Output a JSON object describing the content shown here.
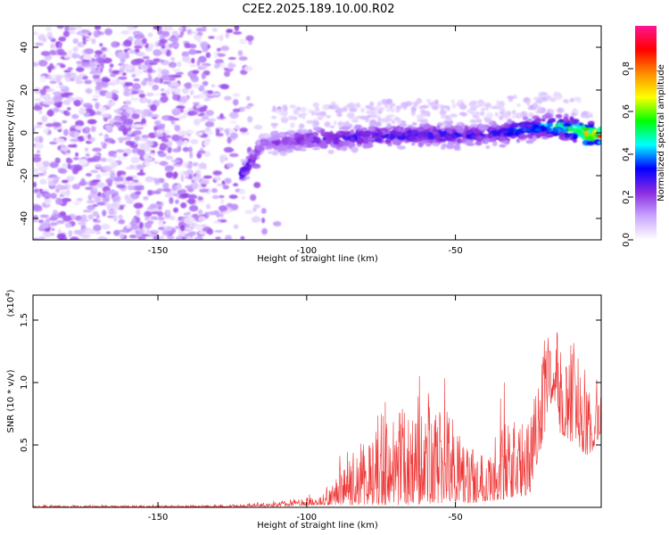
{
  "figure": {
    "title": "C2E2.2025.189.10.00.R02"
  },
  "chart_data": [
    {
      "type": "heatmap",
      "xlabel": "Height of straight line (km)",
      "ylabel": "Frequency (Hz)",
      "xlim": [
        -192,
        -1
      ],
      "ylim": [
        -50,
        50
      ],
      "x_ticks": [
        -150,
        -100,
        -50
      ],
      "y_ticks": [
        40,
        20,
        0,
        -20,
        -40
      ],
      "grid": false,
      "colorbar": {
        "label": "Normalized spectral amplitude",
        "range": [
          0,
          1
        ],
        "ticks": [
          0.0,
          0.2,
          0.4,
          0.6,
          0.8
        ],
        "colors": [
          "#ffffff",
          "#c9a5ff",
          "#8a2be2",
          "#0000ff",
          "#00ffff",
          "#00ff00",
          "#ffff00",
          "#ff8c00",
          "#ff0000",
          "#ff1493"
        ]
      },
      "ridge": {
        "description": "signal ridge",
        "x": [
          -122,
          -115,
          -100,
          -85,
          -70,
          -55,
          -40,
          -25,
          -15,
          -5,
          -1
        ],
        "frequency_hz": [
          -20,
          -5,
          -3,
          -2,
          -1,
          -1,
          -1,
          2,
          3,
          -1,
          -1
        ],
        "amplitude": [
          0.35,
          0.25,
          0.3,
          0.35,
          0.35,
          0.35,
          0.35,
          0.45,
          0.6,
          0.85,
          0.95
        ]
      },
      "noise_region": {
        "x_range": [
          -192,
          -115
        ],
        "frequency_range": [
          -50,
          50
        ],
        "amplitude_range": [
          0.02,
          0.2
        ]
      }
    },
    {
      "type": "line",
      "xlabel": "Height of straight line (km)",
      "ylabel": "SNR (10 * v/v)",
      "y_exponent_label": "(x10",
      "y_exponent_sup": "4",
      "y_exponent_close": ")",
      "xlim": [
        -192,
        -1
      ],
      "ylim": [
        0,
        1.7
      ],
      "x_ticks": [
        -150,
        -100,
        -50
      ],
      "y_ticks": [
        1.5,
        1.0,
        0.5
      ],
      "grid": false,
      "series": [
        {
          "color": "#ee3333",
          "envelope_x": [
            -192,
            -130,
            -115,
            -105,
            -95,
            -90,
            -85,
            -80,
            -75,
            -70,
            -65,
            -60,
            -55,
            -50,
            -45,
            -40,
            -35,
            -30,
            -25,
            -20,
            -17,
            -15,
            -10,
            -5,
            -1
          ],
          "envelope_max": [
            0.02,
            0.02,
            0.04,
            0.07,
            0.12,
            0.35,
            0.45,
            0.6,
            0.95,
            0.9,
            1.0,
            1.15,
            1.0,
            0.8,
            0.55,
            0.65,
            0.8,
            0.85,
            0.8,
            1.4,
            1.7,
            1.4,
            1.35,
            1.2,
            1.1
          ],
          "envelope_min": [
            0.0,
            0.0,
            0.005,
            0.01,
            0.02,
            0.02,
            0.02,
            0.02,
            0.02,
            0.02,
            0.02,
            0.02,
            0.03,
            0.05,
            0.03,
            0.05,
            0.05,
            0.08,
            0.1,
            0.6,
            0.9,
            0.6,
            0.5,
            0.4,
            0.6
          ]
        }
      ]
    }
  ]
}
